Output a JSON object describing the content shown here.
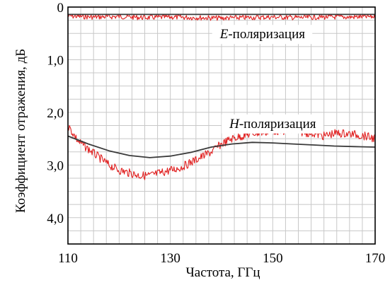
{
  "chart_data": {
    "type": "line",
    "xlabel": "Частота, ГГц",
    "ylabel": "Коэффициент отражения, дБ",
    "xlim": [
      110,
      170
    ],
    "ylim": [
      0,
      4.5
    ],
    "y_inverted": true,
    "grid": true,
    "x_ticks": [
      {
        "value": 110,
        "label": "110"
      },
      {
        "value": 130,
        "label": "130"
      },
      {
        "value": 150,
        "label": "150"
      },
      {
        "value": 170,
        "label": "170"
      }
    ],
    "y_ticks": [
      {
        "value": 0,
        "label": "0"
      },
      {
        "value": 1,
        "label": "1,0"
      },
      {
        "value": 2,
        "label": "2,0"
      },
      {
        "value": 3,
        "label": "3,0"
      },
      {
        "value": 4,
        "label": "4,0"
      }
    ],
    "annotations": [
      {
        "id": "e",
        "letter": "E",
        "text": "-поляризация",
        "x": 148,
        "y": 0.5
      },
      {
        "id": "h",
        "letter": "H",
        "text": "-поляризация",
        "x": 150,
        "y": 2.2
      }
    ],
    "colors": {
      "measured": "#e02020",
      "theory": "#3a3a3a",
      "grid": "#c8c8c8",
      "axis": "#000000"
    },
    "series": [
      {
        "id": "e-measured",
        "color": "#e02020",
        "noise": 0.06,
        "x": [
          110,
          115,
          120,
          125,
          130,
          135,
          140,
          145,
          150,
          155,
          160,
          165,
          170
        ],
        "y": [
          0.17,
          0.19,
          0.18,
          0.2,
          0.19,
          0.2,
          0.21,
          0.2,
          0.19,
          0.2,
          0.19,
          0.19,
          0.18
        ]
      },
      {
        "id": "e-theory",
        "color": "#3a3a3a",
        "x": [
          110,
          130,
          150,
          170
        ],
        "y": [
          0.14,
          0.14,
          0.14,
          0.14
        ]
      },
      {
        "id": "h-measured",
        "color": "#e02020",
        "noise": 0.1,
        "x": [
          110,
          112,
          114,
          116,
          118,
          120,
          122,
          124,
          126,
          128,
          130,
          132,
          134,
          136,
          138,
          140,
          142,
          144,
          146,
          148,
          150,
          152,
          154,
          156,
          158,
          160,
          162,
          164,
          166,
          168,
          170
        ],
        "y": [
          2.25,
          2.55,
          2.7,
          2.85,
          3.0,
          3.1,
          3.15,
          3.2,
          3.2,
          3.15,
          3.1,
          3.05,
          2.95,
          2.85,
          2.75,
          2.6,
          2.5,
          2.45,
          2.4,
          2.38,
          2.35,
          2.35,
          2.35,
          2.38,
          2.4,
          2.45,
          2.4,
          2.4,
          2.42,
          2.45,
          2.5
        ]
      },
      {
        "id": "h-theory",
        "color": "#3a3a3a",
        "x": [
          110,
          114,
          118,
          122,
          126,
          130,
          134,
          138,
          142,
          146,
          150,
          154,
          158,
          162,
          166,
          170
        ],
        "y": [
          2.45,
          2.6,
          2.73,
          2.82,
          2.86,
          2.83,
          2.76,
          2.66,
          2.6,
          2.57,
          2.58,
          2.6,
          2.62,
          2.64,
          2.65,
          2.66
        ]
      }
    ]
  }
}
